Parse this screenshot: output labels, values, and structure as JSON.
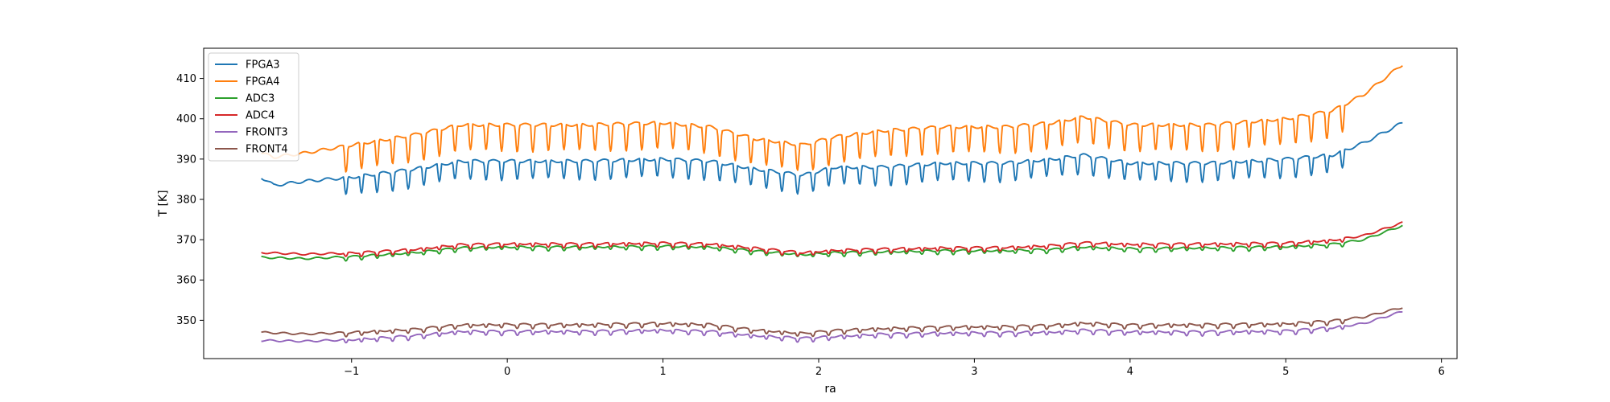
{
  "chart_data": {
    "type": "line",
    "xlabel": "ra",
    "ylabel": "T [K]",
    "xlim": [
      -1.95,
      6.1
    ],
    "ylim": [
      340.5,
      417.5
    ],
    "xticks": [
      -1,
      0,
      1,
      2,
      3,
      4,
      5,
      6
    ],
    "xtick_labels": [
      "−1",
      "0",
      "1",
      "2",
      "3",
      "4",
      "5",
      "6"
    ],
    "yticks": [
      350,
      360,
      370,
      380,
      390,
      400,
      410
    ],
    "ytick_labels": [
      "350",
      "360",
      "370",
      "380",
      "390",
      "400",
      "410"
    ],
    "grid": false,
    "legend_position": "top-left",
    "x_start": -1.58,
    "x_end": 5.75,
    "series": [
      {
        "name": "FPGA3",
        "color": "#1f77b4",
        "baseline": [
          [
            -1.58,
            385.5
          ],
          [
            -1.5,
            383.5
          ],
          [
            -1.3,
            384.5
          ],
          [
            -1.0,
            385.5
          ],
          [
            -0.6,
            387.5
          ],
          [
            -0.3,
            389.5
          ],
          [
            0.0,
            389.5
          ],
          [
            0.5,
            389.5
          ],
          [
            1.0,
            390.0
          ],
          [
            1.3,
            389.5
          ],
          [
            1.6,
            387.5
          ],
          [
            1.9,
            386.0
          ],
          [
            2.1,
            388.0
          ],
          [
            2.4,
            388.0
          ],
          [
            2.8,
            389.0
          ],
          [
            3.2,
            389.0
          ],
          [
            3.5,
            390.0
          ],
          [
            3.7,
            391.0
          ],
          [
            4.0,
            389.0
          ],
          [
            4.5,
            389.0
          ],
          [
            5.0,
            390.0
          ],
          [
            5.3,
            391.0
          ],
          [
            5.5,
            394.0
          ],
          [
            5.75,
            399.0
          ]
        ],
        "dip_depth": 4.5,
        "dip_start": -1.05,
        "dip_end": 5.4
      },
      {
        "name": "FPGA4",
        "color": "#ff7f0e",
        "baseline": [
          [
            -1.58,
            391.5
          ],
          [
            -1.5,
            390.5
          ],
          [
            -1.3,
            391.5
          ],
          [
            -1.0,
            393.5
          ],
          [
            -0.6,
            396.0
          ],
          [
            -0.3,
            398.5
          ],
          [
            0.0,
            398.5
          ],
          [
            0.5,
            398.5
          ],
          [
            1.0,
            399.0
          ],
          [
            1.3,
            398.0
          ],
          [
            1.6,
            395.0
          ],
          [
            1.9,
            393.5
          ],
          [
            2.1,
            395.5
          ],
          [
            2.4,
            397.0
          ],
          [
            2.8,
            398.0
          ],
          [
            3.2,
            398.0
          ],
          [
            3.5,
            399.0
          ],
          [
            3.7,
            400.5
          ],
          [
            4.0,
            398.5
          ],
          [
            4.5,
            398.5
          ],
          [
            5.0,
            400.0
          ],
          [
            5.3,
            402.0
          ],
          [
            5.5,
            406.0
          ],
          [
            5.75,
            413.5
          ]
        ],
        "dip_depth": 6.5,
        "dip_start": -1.05,
        "dip_end": 5.4
      },
      {
        "name": "ADC3",
        "color": "#2ca02c",
        "baseline": [
          [
            -1.58,
            365.6
          ],
          [
            -1.3,
            365.3
          ],
          [
            -1.0,
            365.8
          ],
          [
            -0.6,
            366.8
          ],
          [
            -0.3,
            368.0
          ],
          [
            0.0,
            368.2
          ],
          [
            0.5,
            368.2
          ],
          [
            1.0,
            368.4
          ],
          [
            1.3,
            368.2
          ],
          [
            1.6,
            367.2
          ],
          [
            1.9,
            366.3
          ],
          [
            2.1,
            366.8
          ],
          [
            2.4,
            367.0
          ],
          [
            2.8,
            367.3
          ],
          [
            3.2,
            367.3
          ],
          [
            3.5,
            367.6
          ],
          [
            3.7,
            368.2
          ],
          [
            4.0,
            367.8
          ],
          [
            4.5,
            368.0
          ],
          [
            5.0,
            368.3
          ],
          [
            5.3,
            368.9
          ],
          [
            5.5,
            370.0
          ],
          [
            5.75,
            373.5
          ]
        ],
        "dip_depth": 0.8,
        "dip_start": -1.05,
        "dip_end": 5.4
      },
      {
        "name": "ADC4",
        "color": "#d62728",
        "baseline": [
          [
            -1.58,
            366.8
          ],
          [
            -1.3,
            366.4
          ],
          [
            -1.0,
            366.7
          ],
          [
            -0.6,
            367.6
          ],
          [
            -0.3,
            368.8
          ],
          [
            0.0,
            369.0
          ],
          [
            0.5,
            369.0
          ],
          [
            1.0,
            369.2
          ],
          [
            1.3,
            369.0
          ],
          [
            1.6,
            367.9
          ],
          [
            1.9,
            366.8
          ],
          [
            2.1,
            367.4
          ],
          [
            2.4,
            367.7
          ],
          [
            2.8,
            368.0
          ],
          [
            3.2,
            368.1
          ],
          [
            3.5,
            368.6
          ],
          [
            3.7,
            369.3
          ],
          [
            4.0,
            368.9
          ],
          [
            4.5,
            369.0
          ],
          [
            5.0,
            369.2
          ],
          [
            5.3,
            369.9
          ],
          [
            5.5,
            371.0
          ],
          [
            5.75,
            374.2
          ]
        ],
        "dip_depth": 0.9,
        "dip_start": -1.05,
        "dip_end": 5.4
      },
      {
        "name": "FRONT3",
        "color": "#9467bd",
        "baseline": [
          [
            -1.58,
            345.0
          ],
          [
            -1.3,
            344.8
          ],
          [
            -1.0,
            345.2
          ],
          [
            -0.6,
            346.2
          ],
          [
            -0.3,
            347.3
          ],
          [
            0.0,
            347.3
          ],
          [
            0.5,
            347.3
          ],
          [
            1.0,
            347.6
          ],
          [
            1.3,
            347.3
          ],
          [
            1.6,
            346.2
          ],
          [
            1.9,
            345.6
          ],
          [
            2.1,
            346.0
          ],
          [
            2.4,
            346.6
          ],
          [
            2.8,
            346.9
          ],
          [
            3.2,
            347.0
          ],
          [
            3.5,
            347.1
          ],
          [
            3.7,
            347.6
          ],
          [
            4.0,
            347.2
          ],
          [
            4.5,
            347.2
          ],
          [
            5.0,
            347.4
          ],
          [
            5.3,
            348.2
          ],
          [
            5.5,
            349.2
          ],
          [
            5.75,
            352.2
          ]
        ],
        "dip_depth": 0.9,
        "dip_start": -1.05,
        "dip_end": 5.4
      },
      {
        "name": "FRONT4",
        "color": "#8c564b",
        "baseline": [
          [
            -1.58,
            347.0
          ],
          [
            -1.3,
            346.6
          ],
          [
            -1.0,
            347.0
          ],
          [
            -0.6,
            347.8
          ],
          [
            -0.3,
            348.9
          ],
          [
            0.0,
            349.0
          ],
          [
            0.5,
            349.0
          ],
          [
            1.0,
            349.3
          ],
          [
            1.3,
            349.0
          ],
          [
            1.6,
            347.6
          ],
          [
            1.9,
            346.8
          ],
          [
            2.1,
            347.5
          ],
          [
            2.4,
            348.0
          ],
          [
            2.8,
            348.4
          ],
          [
            3.2,
            348.5
          ],
          [
            3.5,
            348.8
          ],
          [
            3.7,
            349.4
          ],
          [
            4.0,
            348.9
          ],
          [
            4.5,
            349.0
          ],
          [
            5.0,
            349.2
          ],
          [
            5.3,
            349.9
          ],
          [
            5.5,
            350.8
          ],
          [
            5.75,
            353.2
          ]
        ],
        "dip_depth": 0.9,
        "dip_start": -1.05,
        "dip_end": 5.4
      }
    ]
  }
}
